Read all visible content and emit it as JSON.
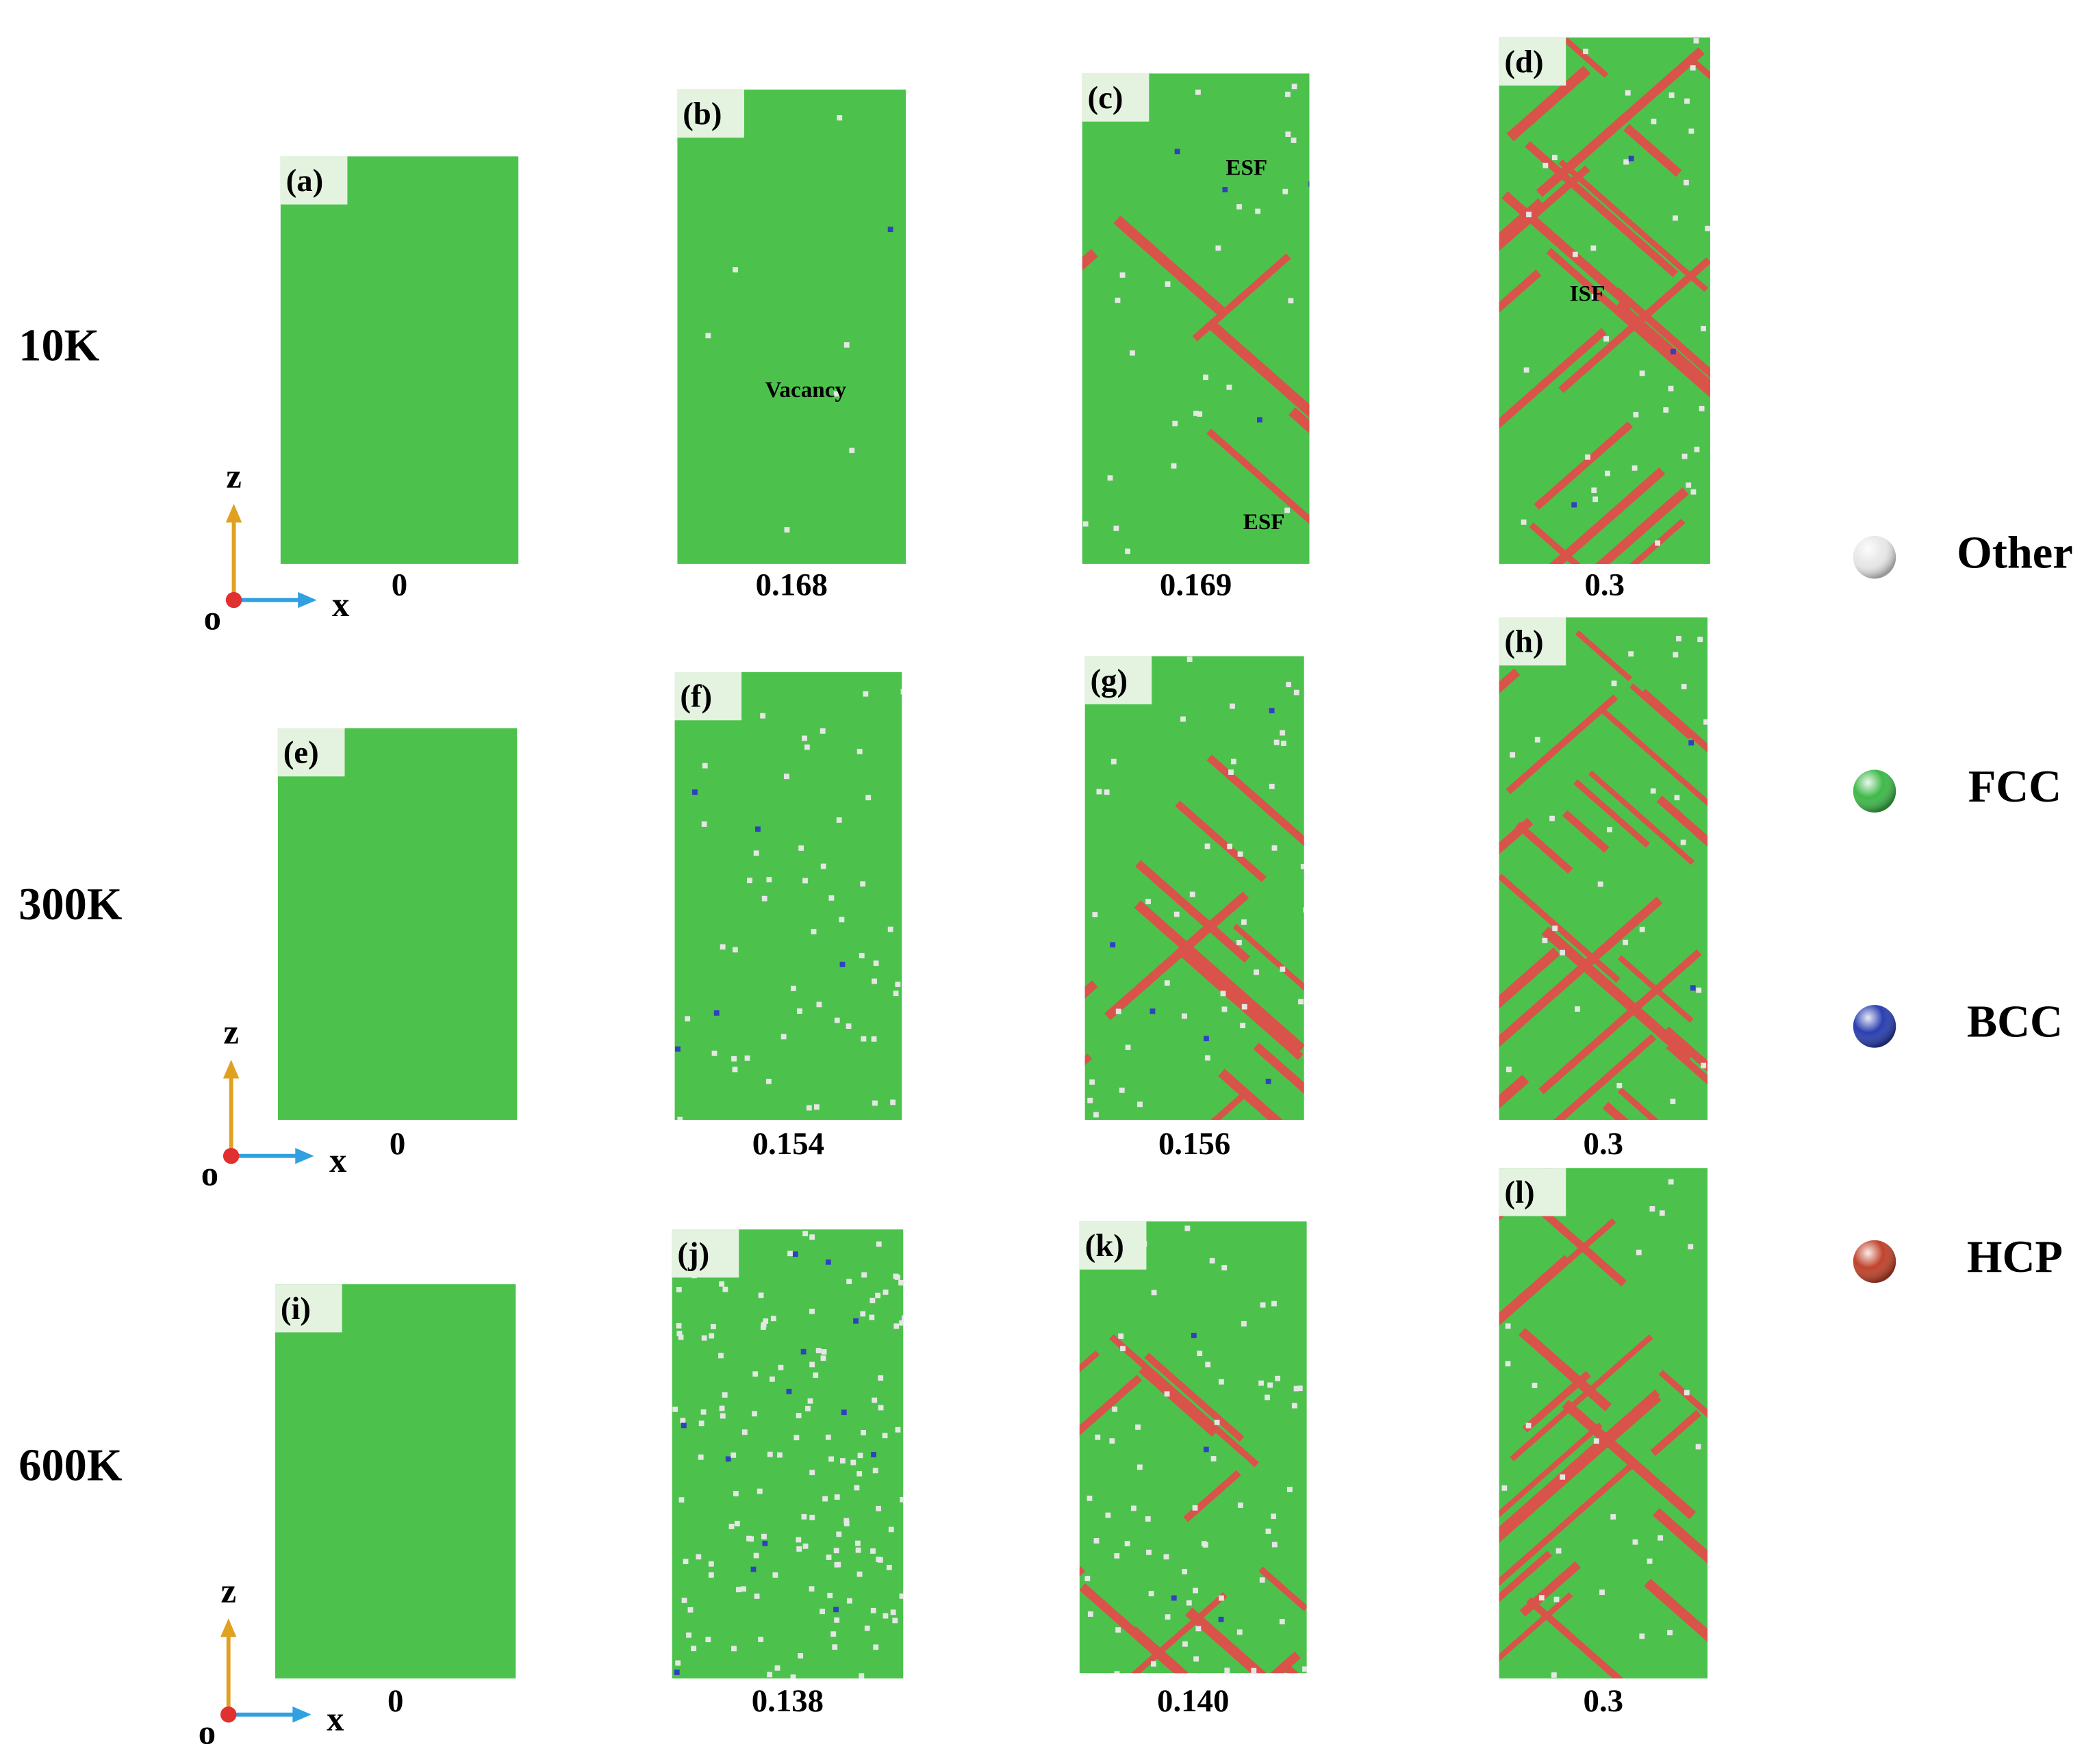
{
  "rows": [
    {
      "label": "10K",
      "axis": {
        "z": "z",
        "x": "x",
        "o": "o"
      },
      "panels": [
        {
          "tag": "(a)",
          "strain": "0"
        },
        {
          "tag": "(b)",
          "strain": "0.168",
          "notes": [
            "Vacancy"
          ]
        },
        {
          "tag": "(c)",
          "strain": "0.169",
          "notes": [
            "ESF",
            "ESF"
          ]
        },
        {
          "tag": "(d)",
          "strain": "0.3",
          "notes": [
            "ISF"
          ]
        }
      ]
    },
    {
      "label": "300K",
      "axis": {
        "z": "z",
        "x": "x",
        "o": "o"
      },
      "panels": [
        {
          "tag": "(e)",
          "strain": "0"
        },
        {
          "tag": "(f)",
          "strain": "0.154"
        },
        {
          "tag": "(g)",
          "strain": "0.156"
        },
        {
          "tag": "(h)",
          "strain": "0.3"
        }
      ]
    },
    {
      "label": "600K",
      "axis": {
        "z": "z",
        "x": "x",
        "o": "o"
      },
      "panels": [
        {
          "tag": "(i)",
          "strain": "0"
        },
        {
          "tag": "(j)",
          "strain": "0.138"
        },
        {
          "tag": "(k)",
          "strain": "0.140"
        },
        {
          "tag": "(l)",
          "strain": "0.3"
        }
      ]
    }
  ],
  "legend": [
    {
      "name": "Other",
      "color": "#e8e8e8"
    },
    {
      "name": "FCC",
      "color": "#3fb94a"
    },
    {
      "name": "BCC",
      "color": "#2a3fb0"
    },
    {
      "name": "HCP",
      "color": "#c0432c"
    }
  ]
}
